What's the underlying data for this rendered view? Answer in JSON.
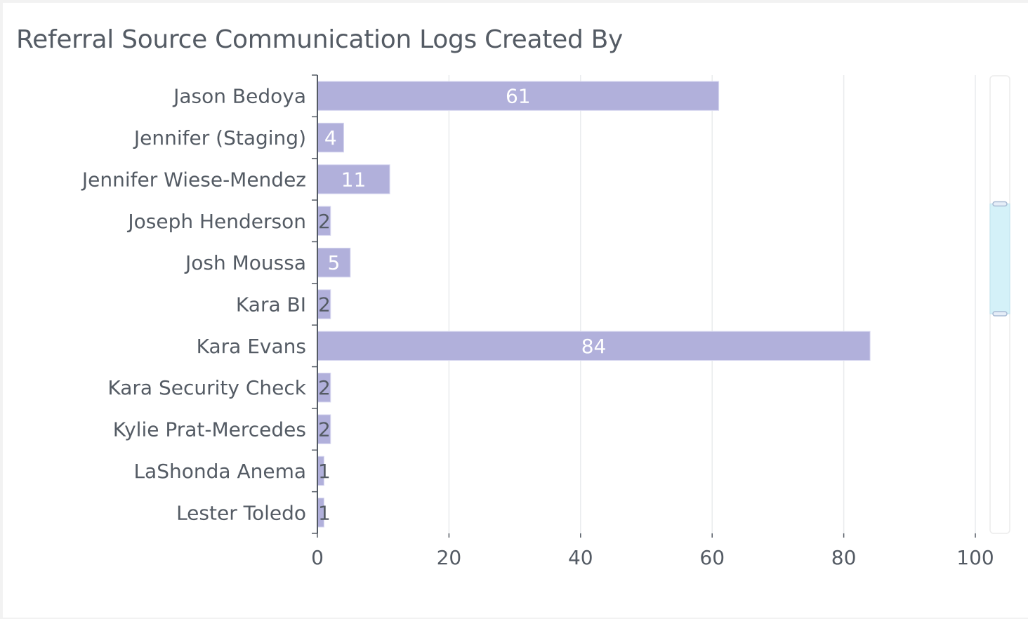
{
  "chart_data": {
    "type": "bar",
    "orientation": "horizontal",
    "title": "Referral Source Communication Logs Created By",
    "xlabel": "",
    "ylabel": "",
    "categories": [
      "Jason Bedoya",
      "Jennifer (Staging)",
      "Jennifer Wiese-Mendez",
      "Joseph Henderson",
      "Josh Moussa",
      "Kara BI",
      "Kara Evans",
      "Kara Security Check",
      "Kylie Prat-Mercedes",
      "LaShonda Anema",
      "Lester Toledo"
    ],
    "values": [
      61,
      4,
      11,
      2,
      5,
      2,
      84,
      2,
      2,
      1,
      1
    ],
    "xlim": [
      0,
      100
    ],
    "xticks": [
      0,
      20,
      40,
      60,
      80,
      100
    ],
    "grid": true,
    "data_labels": true,
    "colors": {
      "bar": "#b1b0db",
      "text": "#545b64",
      "grid": "#e9ebed",
      "label_inside": "#ffffff",
      "zoom_fill": "#d4f1f8",
      "zoom_handle": "#a9bbd4"
    },
    "zoom_slider": {
      "start": 0.28,
      "end": 0.52
    }
  }
}
